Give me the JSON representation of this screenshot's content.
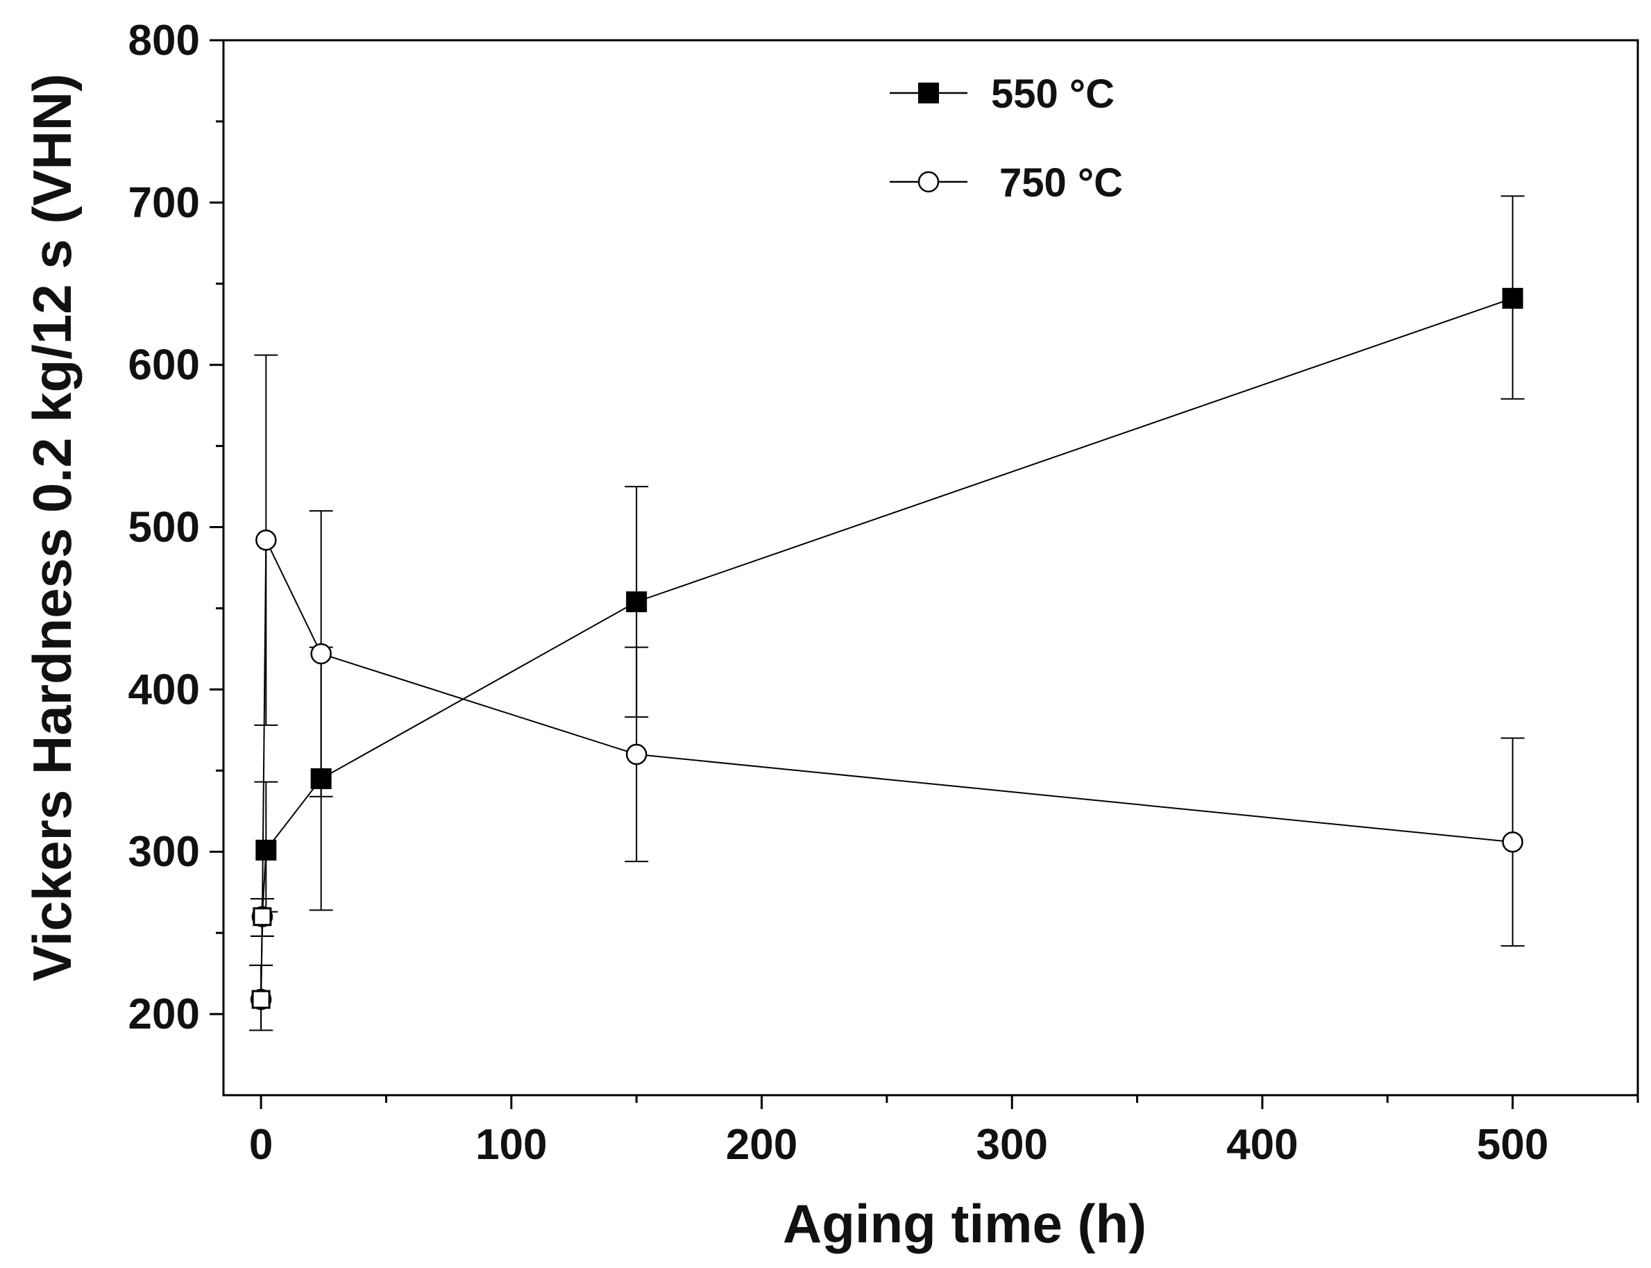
{
  "chart_data": {
    "type": "line",
    "title": "",
    "xlabel": "Aging time (h)",
    "ylabel": "Vickers Hardness 0.2 kg/12 s (VHN)",
    "xlim": [
      -15,
      550
    ],
    "ylim": [
      150,
      800
    ],
    "x_major_ticks": [
      0,
      100,
      200,
      300,
      400,
      500
    ],
    "x_minor_ticks": [
      50,
      150,
      250,
      350,
      450,
      550
    ],
    "y_major_ticks": [
      200,
      300,
      400,
      500,
      600,
      700,
      800
    ],
    "y_minor_ticks": [
      250,
      350,
      450,
      550,
      650,
      750
    ],
    "legend_position": "top-center",
    "series": [
      {
        "name": "550 °C",
        "marker": "filled-square",
        "points": [
          {
            "x": 0,
            "y": 209,
            "err_low": 190,
            "err_high": 230
          },
          {
            "x": 0.5,
            "y": 260,
            "err_low": 248,
            "err_high": 271
          },
          {
            "x": 2,
            "y": 301,
            "err_low": 263,
            "err_high": 343
          },
          {
            "x": 24,
            "y": 345,
            "err_low": 264,
            "err_high": 426
          },
          {
            "x": 150,
            "y": 454,
            "err_low": 383,
            "err_high": 525
          },
          {
            "x": 500,
            "y": 641,
            "err_low": 579,
            "err_high": 704
          }
        ]
      },
      {
        "name": "750 °C",
        "marker": "open-circle",
        "points": [
          {
            "x": 0,
            "y": 209,
            "err_low": 190,
            "err_high": 230
          },
          {
            "x": 0.5,
            "y": 260,
            "err_low": 248,
            "err_high": 271
          },
          {
            "x": 2,
            "y": 492,
            "err_low": 378,
            "err_high": 606
          },
          {
            "x": 24,
            "y": 422,
            "err_low": 334,
            "err_high": 510
          },
          {
            "x": 150,
            "y": 360,
            "err_low": 294,
            "err_high": 426
          },
          {
            "x": 500,
            "y": 306,
            "err_low": 242,
            "err_high": 370
          }
        ]
      }
    ]
  }
}
